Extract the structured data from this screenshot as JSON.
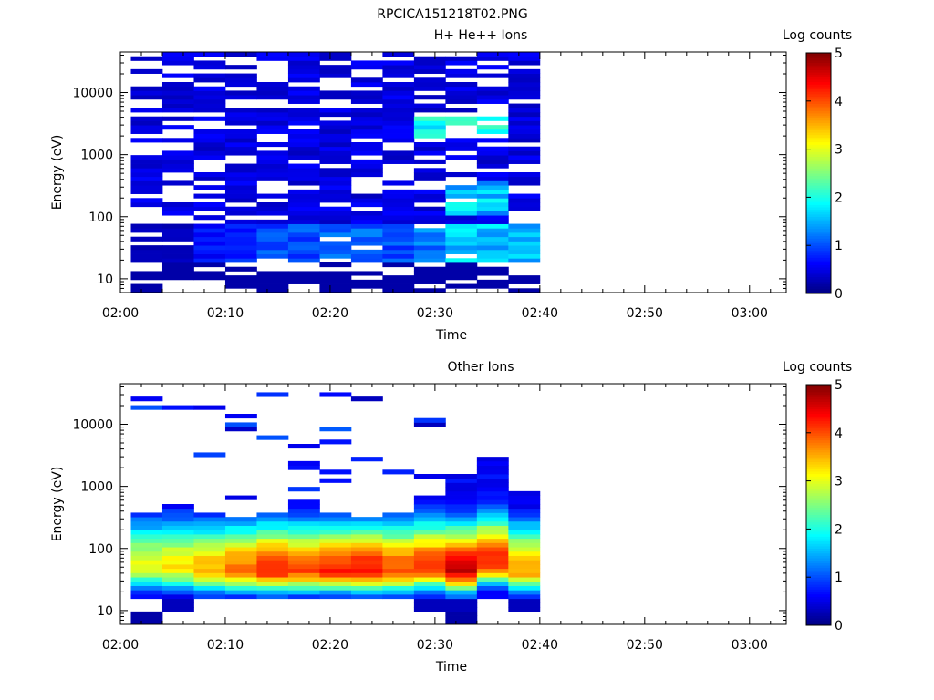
{
  "page_title": "RPCICA151218T02.PNG",
  "chart_data": [
    {
      "type": "heatmap",
      "title": "H+ He++ Ions",
      "xlabel": "Time",
      "ylabel": "Energy (eV)",
      "colorbar_label": "Log counts",
      "log_y": true,
      "ylim": [
        6,
        45000
      ],
      "x_ticks": [
        "02:00",
        "02:10",
        "02:20",
        "02:30",
        "02:40",
        "02:50",
        "03:00"
      ],
      "y_ticks": [
        "10",
        "100",
        "1000",
        "10000"
      ],
      "colorbar_ticks": [
        "0",
        "1",
        "2",
        "3",
        "4",
        "5"
      ],
      "colorbar_range": [
        0,
        5
      ],
      "colormap": "jet",
      "time_bins": [
        "02:01",
        "02:04",
        "02:07",
        "02:10",
        "02:13",
        "02:16",
        "02:19",
        "02:22",
        "02:25",
        "02:28",
        "02:31",
        "02:34",
        "02:37"
      ],
      "low_band_levels": [
        0.3,
        0.3,
        0.7,
        0.8,
        1.0,
        1.0,
        1.1,
        1.1,
        1.0,
        1.3,
        1.7,
        1.6,
        1.5
      ],
      "background_level": 0.3,
      "notes_visible": "sparse blue counts across all energies 6 eV–40 keV, enhancement near 30–60 eV and ~2–3 keV around 02:28–02:34"
    },
    {
      "type": "heatmap",
      "title": "Other Ions",
      "xlabel": "Time",
      "ylabel": "Energy (eV)",
      "colorbar_label": "Log counts",
      "log_y": true,
      "ylim": [
        6,
        45000
      ],
      "x_ticks": [
        "02:00",
        "02:10",
        "02:20",
        "02:30",
        "02:40",
        "02:50",
        "03:00"
      ],
      "y_ticks": [
        "10",
        "100",
        "1000",
        "10000"
      ],
      "colorbar_ticks": [
        "0",
        "1",
        "2",
        "3",
        "4",
        "5"
      ],
      "colorbar_range": [
        0,
        5
      ],
      "colormap": "jet",
      "time_bins": [
        "02:01",
        "02:04",
        "02:07",
        "02:10",
        "02:13",
        "02:16",
        "02:19",
        "02:22",
        "02:25",
        "02:28",
        "02:31",
        "02:34",
        "02:37"
      ],
      "peak_levels": [
        3.0,
        3.2,
        3.5,
        3.8,
        4.2,
        4.0,
        4.2,
        4.3,
        4.0,
        4.1,
        4.6,
        4.3,
        3.6
      ],
      "peak_energy_eV": [
        50,
        50,
        45,
        45,
        45,
        45,
        45,
        45,
        45,
        50,
        45,
        60,
        45
      ],
      "upper_cutoff_eV": [
        380,
        550,
        350,
        300,
        400,
        620,
        380,
        330,
        380,
        700,
        1700,
        3000,
        900
      ]
    }
  ]
}
